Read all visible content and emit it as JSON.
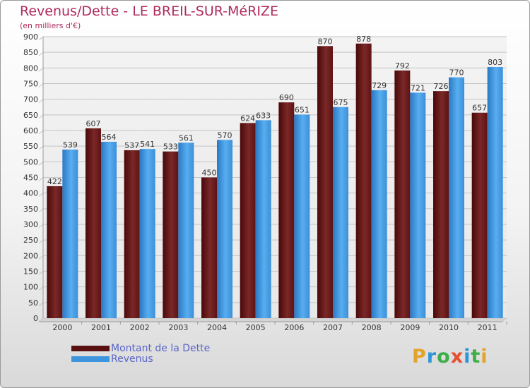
{
  "header": {
    "title": "Revenus/Dette - LE BREIL-SUR-MéRIZE",
    "subtitle": "(en milliers d'€)"
  },
  "brand": "Proxiti",
  "colors": {
    "dette": "#6b1a1a",
    "revenus": "#3d95dd",
    "title": "#b02a5c",
    "legend_text": "#5a64c8"
  },
  "chart_data": {
    "type": "bar",
    "categories": [
      "2000",
      "2001",
      "2002",
      "2003",
      "2004",
      "2005",
      "2006",
      "2007",
      "2008",
      "2009",
      "2010",
      "2011"
    ],
    "series": [
      {
        "name": "Montant de la Dette",
        "values": [
          422,
          607,
          537,
          533,
          450,
          624,
          690,
          870,
          878,
          792,
          726,
          657
        ]
      },
      {
        "name": "Revenus",
        "values": [
          539,
          564,
          541,
          561,
          570,
          633,
          651,
          675,
          729,
          721,
          770,
          803
        ]
      }
    ],
    "title": "Revenus/Dette - LE BREIL-SUR-MéRIZE",
    "ylabel": "(en milliers d'€)",
    "ylim": [
      0,
      900
    ],
    "yticks": [
      0,
      50,
      100,
      150,
      200,
      250,
      300,
      350,
      400,
      450,
      500,
      550,
      600,
      650,
      700,
      750,
      800,
      850,
      900
    ],
    "grid": true,
    "legend": "bottom-left"
  }
}
